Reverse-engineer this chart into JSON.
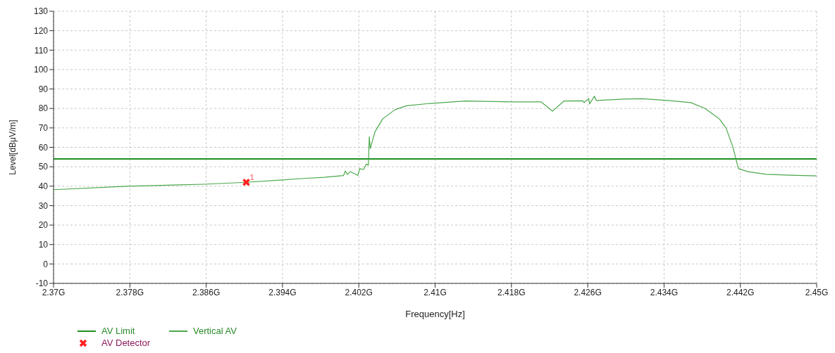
{
  "chart_data": {
    "type": "line",
    "xlabel": "Frequency[Hz]",
    "ylabel": "Level[dBμV/m]",
    "xlim": [
      2.37,
      2.45
    ],
    "xticks": [
      {
        "value": 2.37,
        "label": "2.37G"
      },
      {
        "value": 2.378,
        "label": "2.378G"
      },
      {
        "value": 2.386,
        "label": "2.386G"
      },
      {
        "value": 2.394,
        "label": "2.394G"
      },
      {
        "value": 2.402,
        "label": "2.402G"
      },
      {
        "value": 2.41,
        "label": "2.41G"
      },
      {
        "value": 2.418,
        "label": "2.418G"
      },
      {
        "value": 2.426,
        "label": "2.426G"
      },
      {
        "value": 2.434,
        "label": "2.434G"
      },
      {
        "value": 2.442,
        "label": "2.442G"
      },
      {
        "value": 2.45,
        "label": "2.45G"
      }
    ],
    "ylim": [
      -10,
      130
    ],
    "yticks": [
      -10,
      0,
      10,
      20,
      30,
      40,
      50,
      60,
      70,
      80,
      90,
      100,
      110,
      120,
      130
    ],
    "grid": true,
    "legend": "bottom",
    "line_style": "solid",
    "marker": "none",
    "series": [
      {
        "name": "AV Limit",
        "color": "#1f8f1f",
        "x": [
          2.37,
          2.45
        ],
        "values": [
          54,
          54
        ]
      },
      {
        "name": "Vertical AV",
        "color": "#4aa84a",
        "x": [
          2.37,
          2.3777,
          2.3858,
          2.3902,
          2.394,
          2.3962,
          2.3984,
          2.4004,
          2.4006,
          2.4008,
          2.4011,
          2.4019,
          2.4021,
          2.4025,
          2.4028,
          2.403,
          2.4031,
          2.4032,
          2.4037,
          2.4045,
          2.4058,
          2.407,
          2.4095,
          2.4132,
          2.4181,
          2.4211,
          2.4223,
          2.4235,
          2.4255,
          2.4256,
          2.4261,
          2.4262,
          2.4267,
          2.4269,
          2.4299,
          2.4317,
          2.4344,
          2.4368,
          2.4383,
          2.4398,
          2.4405,
          2.4412,
          2.4418,
          2.4428,
          2.4447,
          2.4472,
          2.45
        ],
        "values": [
          38.2,
          40,
          41,
          42,
          43.2,
          44,
          44.6,
          45.5,
          47.9,
          46,
          47.5,
          45.5,
          49,
          48.6,
          51.4,
          50.8,
          65.4,
          59.3,
          68,
          74.6,
          79.4,
          81.4,
          82.6,
          83.8,
          83.4,
          83.4,
          78.6,
          83.8,
          83.9,
          83,
          85.1,
          82.4,
          86.3,
          84.1,
          84.8,
          85,
          84.1,
          83,
          80,
          74.6,
          69.9,
          60.4,
          49,
          47.5,
          46.1,
          45.7,
          45.3
        ]
      },
      {
        "name": "AV Detector",
        "type": "scatter",
        "marker": "cross",
        "color": "#ff2020",
        "x": [
          2.3902
        ],
        "values": [
          42
        ]
      }
    ],
    "annotations": [
      {
        "text": "1",
        "x": 2.3902,
        "y": 42
      }
    ]
  }
}
